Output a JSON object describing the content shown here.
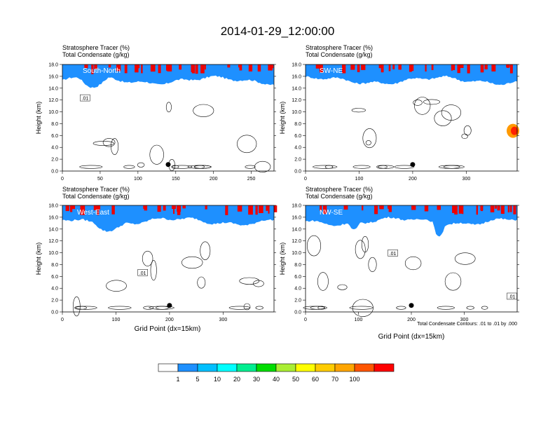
{
  "title": "2014-01-29_12:00:00",
  "chart_data": [
    {
      "type": "heatmap",
      "region": "South-North",
      "label_1": "Stratosphere Tracer   (%)",
      "label_2": "Total Condensate   (g/kg)",
      "ylabel": "Height (km)",
      "xlabel": "",
      "xlim": [
        0,
        280
      ],
      "ylim": [
        0,
        18
      ],
      "xticks": [
        0,
        50,
        100,
        150,
        200,
        250
      ],
      "yticks": [
        "0.0",
        "2.0",
        "4.0",
        "6.0",
        "8.0",
        "10.0",
        "12.0",
        "14.0",
        "16.0",
        "18.0"
      ],
      "marker": {
        "x": 140,
        "y": 1.1
      },
      "contour_labels": [
        {
          "text": ".01",
          "x": 30,
          "y": 12.3
        }
      ],
      "note": ""
    },
    {
      "type": "heatmap",
      "region": "SW-NE",
      "label_1": "Stratosphere Tracer   (%)",
      "label_2": "Total Condensate   (g/kg)",
      "ylabel": "Height (km)",
      "xlabel": "",
      "xlim": [
        0,
        395
      ],
      "ylim": [
        0,
        18
      ],
      "xticks": [
        0,
        100,
        200,
        300
      ],
      "yticks": [
        "0.0",
        "2.0",
        "4.0",
        "6.0",
        "8.0",
        "10.0",
        "12.0",
        "14.0",
        "16.0",
        "18.0"
      ],
      "marker": {
        "x": 200,
        "y": 1.1
      },
      "contour_labels": [],
      "note": ""
    },
    {
      "type": "heatmap",
      "region": "West-East",
      "label_1": "Stratosphere Tracer   (%)",
      "label_2": "Total Condensate   (g/kg)",
      "ylabel": "Height (km)",
      "xlabel": "Grid Point (dx=15km)",
      "xlim": [
        0,
        395
      ],
      "ylim": [
        0,
        18
      ],
      "xticks": [
        0,
        100,
        200,
        300
      ],
      "yticks": [
        "0.0",
        "2.0",
        "4.0",
        "6.0",
        "8.0",
        "10.0",
        "12.0",
        "14.0",
        "16.0",
        "18.0"
      ],
      "marker": {
        "x": 200,
        "y": 1.1
      },
      "contour_labels": [
        {
          "text": ".01",
          "x": 150,
          "y": 6.6
        }
      ],
      "note": ""
    },
    {
      "type": "heatmap",
      "region": "NW-SE",
      "label_1": "Stratosphere Tracer   (%)",
      "label_2": "Total Condensate   (g/kg)",
      "ylabel": "Height (km)",
      "xlabel": "Grid Point (dx=15km)",
      "xlim": [
        0,
        400
      ],
      "ylim": [
        0,
        18
      ],
      "xticks": [
        0,
        100,
        200,
        300
      ],
      "yticks": [
        "0.0",
        "2.0",
        "4.0",
        "6.0",
        "8.0",
        "10.0",
        "12.0",
        "14.0",
        "16.0",
        "18.0"
      ],
      "marker": {
        "x": 200,
        "y": 1.1
      },
      "contour_labels": [
        {
          "text": ".01",
          "x": 165,
          "y": 9.9
        },
        {
          "text": ".01",
          "x": 390,
          "y": 2.6
        }
      ],
      "note": "Total Condensate Contours: .01 to .01 by .000"
    }
  ],
  "colorbar": {
    "labels": [
      "1",
      "5",
      "10",
      "20",
      "30",
      "40",
      "50",
      "60",
      "70",
      "100"
    ],
    "colors": [
      "#ffffff",
      "#1e90ff",
      "#00bfff",
      "#00ffff",
      "#00ee90",
      "#00dd00",
      "#aaee33",
      "#ffff00",
      "#ffcc00",
      "#ffa500",
      "#ff5500",
      "#ff0000"
    ]
  }
}
